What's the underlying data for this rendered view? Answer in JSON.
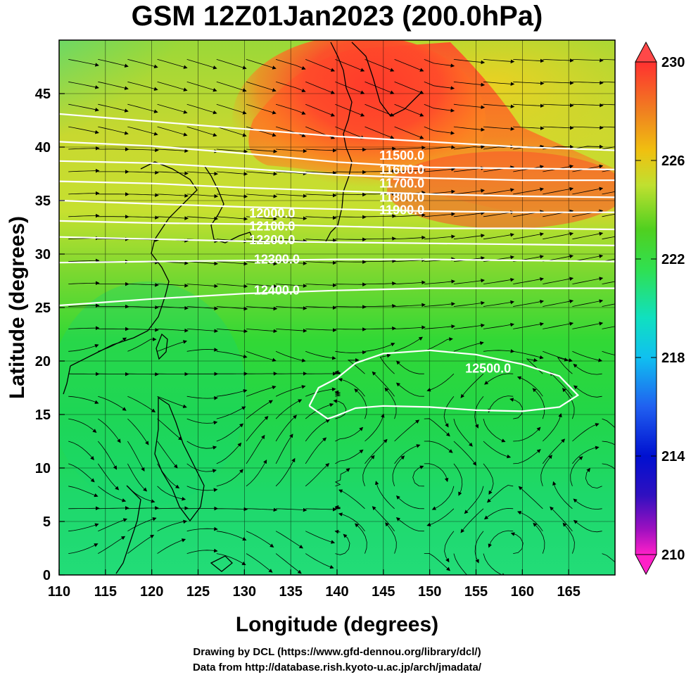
{
  "title": "GSM 12Z01Jan2023 (200.0hPa)",
  "xlabel": "Longitude (degrees)",
  "ylabel": "Latitude  (degrees)",
  "credits": [
    "Drawing by DCL (https://www.gfd-dennou.org/library/dcl/)",
    "Data from http://database.rish.kyoto-u.ac.jp/arch/jmadata/"
  ],
  "map": {
    "x_range": [
      110,
      170
    ],
    "y_range": [
      0,
      50
    ],
    "x_ticks": [
      "110",
      "115",
      "120",
      "125",
      "130",
      "135",
      "140",
      "145",
      "150",
      "155",
      "160",
      "165"
    ],
    "y_ticks": [
      "0",
      "5",
      "10",
      "15",
      "20",
      "25",
      "30",
      "35",
      "40",
      "45"
    ],
    "grid": true,
    "fill_variable_range": [
      210,
      230
    ],
    "colorbar_labels": [
      "230",
      "226",
      "222",
      "218",
      "214",
      "210"
    ],
    "colors": {
      "warm": "#ff3a2a",
      "mid": "#2edc2a",
      "cool": "#10c8f0",
      "min": "#ff20c8",
      "max": "#ff3030",
      "contour": "#ffffff"
    },
    "contour_labels": [
      {
        "text": "11500.0",
        "lon": 147.0,
        "lat": 39.2
      },
      {
        "text": "11600.0",
        "lon": 147.0,
        "lat": 37.9
      },
      {
        "text": "11700.0",
        "lon": 147.0,
        "lat": 36.6
      },
      {
        "text": "11800.0",
        "lon": 147.0,
        "lat": 35.3
      },
      {
        "text": "11900.0",
        "lon": 147.0,
        "lat": 34.1
      },
      {
        "text": "12000.0",
        "lon": 133.0,
        "lat": 33.8
      },
      {
        "text": "12100.0",
        "lon": 133.0,
        "lat": 32.6
      },
      {
        "text": "12200.0",
        "lon": 133.0,
        "lat": 31.3
      },
      {
        "text": "12300.0",
        "lon": 133.5,
        "lat": 29.5
      },
      {
        "text": "12400.0",
        "lon": 133.5,
        "lat": 26.6
      },
      {
        "text": "12500.0",
        "lon": 156.3,
        "lat": 19.3
      }
    ],
    "contour_lines": [
      {
        "lons": [
          110,
          120,
          130,
          140,
          150,
          160,
          170
        ],
        "lats": [
          43.1,
          42.4,
          41.7,
          41.0,
          40.5,
          40.0,
          39.7
        ]
      },
      {
        "lons": [
          110,
          120,
          130,
          140,
          150,
          160,
          170
        ],
        "lats": [
          40.5,
          40.1,
          39.4,
          38.6,
          38.1,
          38.0,
          37.9
        ]
      },
      {
        "lons": [
          110,
          120,
          130,
          140,
          150,
          160,
          170
        ],
        "lats": [
          38.7,
          38.5,
          38.0,
          37.4,
          37.1,
          36.9,
          36.9
        ]
      },
      {
        "lons": [
          110,
          120,
          130,
          140,
          150,
          160,
          170
        ],
        "lats": [
          36.8,
          36.6,
          36.2,
          35.9,
          35.6,
          35.4,
          35.3
        ]
      },
      {
        "lons": [
          110,
          120,
          130,
          140,
          150,
          160,
          170
        ],
        "lats": [
          35.0,
          34.7,
          34.4,
          34.2,
          34.0,
          33.9,
          33.9
        ]
      },
      {
        "lons": [
          110,
          120,
          130,
          140,
          150,
          160,
          170
        ],
        "lats": [
          33.1,
          32.9,
          32.8,
          32.6,
          32.4,
          32.4,
          32.3
        ]
      },
      {
        "lons": [
          110,
          120,
          130,
          140,
          150,
          160,
          170
        ],
        "lats": [
          31.6,
          31.4,
          31.2,
          31.1,
          31.0,
          30.9,
          30.8
        ]
      },
      {
        "lons": [
          110,
          120,
          130,
          140,
          150,
          160,
          170
        ],
        "lats": [
          29.2,
          29.3,
          29.4,
          29.5,
          29.5,
          29.4,
          29.3
        ]
      },
      {
        "lons": [
          110,
          120,
          130,
          140,
          150,
          160,
          170
        ],
        "lats": [
          25.2,
          25.8,
          26.3,
          26.6,
          26.8,
          26.8,
          26.8
        ]
      },
      {
        "lons": [
          137,
          138,
          140,
          142,
          145,
          150,
          155,
          160,
          164,
          166,
          164,
          160,
          155,
          150,
          145,
          142,
          140,
          139,
          137
        ],
        "lats": [
          15.8,
          17.5,
          18.4,
          19.8,
          20.7,
          21.0,
          20.6,
          19.7,
          18.6,
          16.8,
          15.7,
          15.3,
          15.4,
          15.7,
          15.8,
          15.6,
          14.9,
          14.6,
          15.8
        ]
      }
    ]
  }
}
